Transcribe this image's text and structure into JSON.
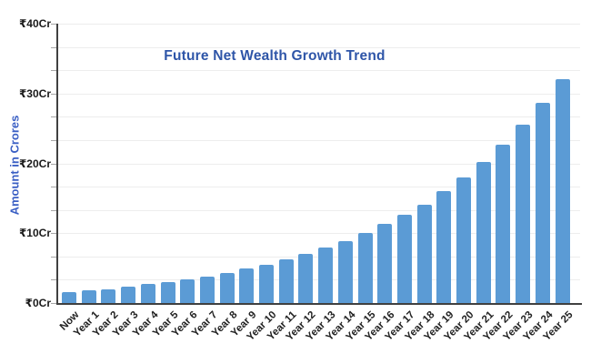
{
  "chart_data": {
    "type": "bar",
    "title": "Future Net Wealth Growth Trend",
    "ylabel": "Amount in Crores",
    "xlabel": "",
    "categories": [
      "Now",
      "Year 1",
      "Year 2",
      "Year 3",
      "Year 4",
      "Year 5",
      "Year 6",
      "Year 7",
      "Year 8",
      "Year 9",
      "Year 10",
      "Year 11",
      "Year 12",
      "Year 13",
      "Year 14",
      "Year 15",
      "Year 16",
      "Year 17",
      "Year 18",
      "Year 19",
      "Year 20",
      "Year 21",
      "Year 22",
      "Year 23",
      "Year 24",
      "Year 25"
    ],
    "values": [
      1.6,
      1.8,
      2.0,
      2.3,
      2.7,
      3.0,
      3.4,
      3.8,
      4.3,
      4.9,
      5.5,
      6.3,
      7.1,
      8.0,
      8.9,
      10.0,
      11.3,
      12.7,
      14.1,
      16.0,
      18.0,
      20.2,
      22.7,
      25.5,
      28.6,
      32.0
    ],
    "values_unit": "Cr",
    "currency_symbol": "₹",
    "ylim": [
      0,
      40
    ],
    "y_ticks": [
      {
        "value": 40,
        "label": "₹40Cr"
      },
      {
        "value": 30,
        "label": "₹30Cr"
      },
      {
        "value": 20,
        "label": "₹20Cr"
      },
      {
        "value": 10,
        "label": "₹10Cr"
      },
      {
        "value": 0,
        "label": "₹0Cr"
      }
    ],
    "minor_tick_divisions_per_major": 3,
    "grid": true,
    "legend": "none",
    "colors": {
      "bar": "#5B9BD5",
      "title": "#2E55A8",
      "ylabel": "#3A5FC4",
      "axis_line": "#404040",
      "gridline": "#EDEDED",
      "tick_mark": "#A6A6A6",
      "y_tick_label": "#1A1A1A",
      "x_tick_label": "#222222",
      "background": "#FFFFFF"
    }
  }
}
